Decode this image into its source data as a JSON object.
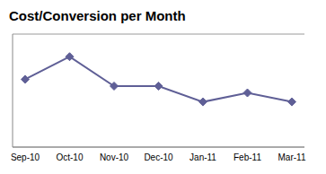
{
  "chart_data": {
    "type": "line",
    "title": "Cost/Conversion per Month",
    "categories": [
      "Sep-10",
      "Oct-10",
      "Nov-10",
      "Dec-10",
      "Jan-11",
      "Feb-11",
      "Mar-11"
    ],
    "series": [
      {
        "name": "Cost/Conversion",
        "color": "#5f5f96",
        "values": [
          3.0,
          4.0,
          2.7,
          2.7,
          2.0,
          2.4,
          2.0
        ],
        "marker": "diamond"
      }
    ],
    "ylim": [
      0,
      5
    ],
    "yticks": [
      0,
      1,
      2,
      3,
      4,
      5
    ],
    "grid": true,
    "tick_labels": "x",
    "legend": false
  }
}
